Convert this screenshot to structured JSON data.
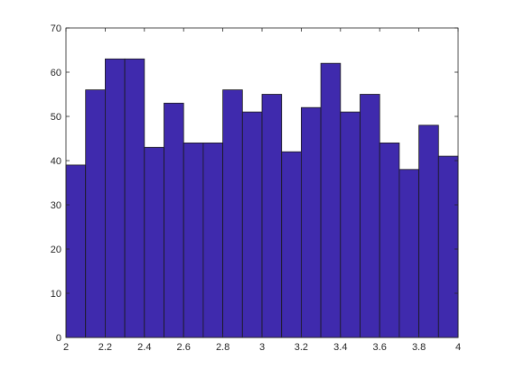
{
  "chart_data": {
    "type": "bar",
    "bin_edges": [
      2.0,
      2.1,
      2.2,
      2.3,
      2.4,
      2.5,
      2.6,
      2.7,
      2.8,
      2.9,
      3.0,
      3.1,
      3.2,
      3.3,
      3.4,
      3.5,
      3.6,
      3.7,
      3.8,
      3.9,
      4.0
    ],
    "values": [
      39,
      56,
      63,
      63,
      43,
      53,
      44,
      44,
      56,
      51,
      55,
      42,
      52,
      62,
      51,
      55,
      44,
      38,
      48,
      41
    ],
    "xlim": [
      2,
      4
    ],
    "ylim": [
      0,
      70
    ],
    "x_ticks": [
      "2",
      "2.2",
      "2.4",
      "2.6",
      "2.8",
      "3",
      "3.2",
      "3.4",
      "3.6",
      "3.8",
      "4"
    ],
    "y_ticks": [
      "0",
      "10",
      "20",
      "30",
      "40",
      "50",
      "60",
      "70"
    ],
    "title": "",
    "xlabel": "",
    "ylabel": "",
    "grid": false,
    "bar_color": "#3f2aad",
    "edge_color": "#1a1a1a"
  }
}
